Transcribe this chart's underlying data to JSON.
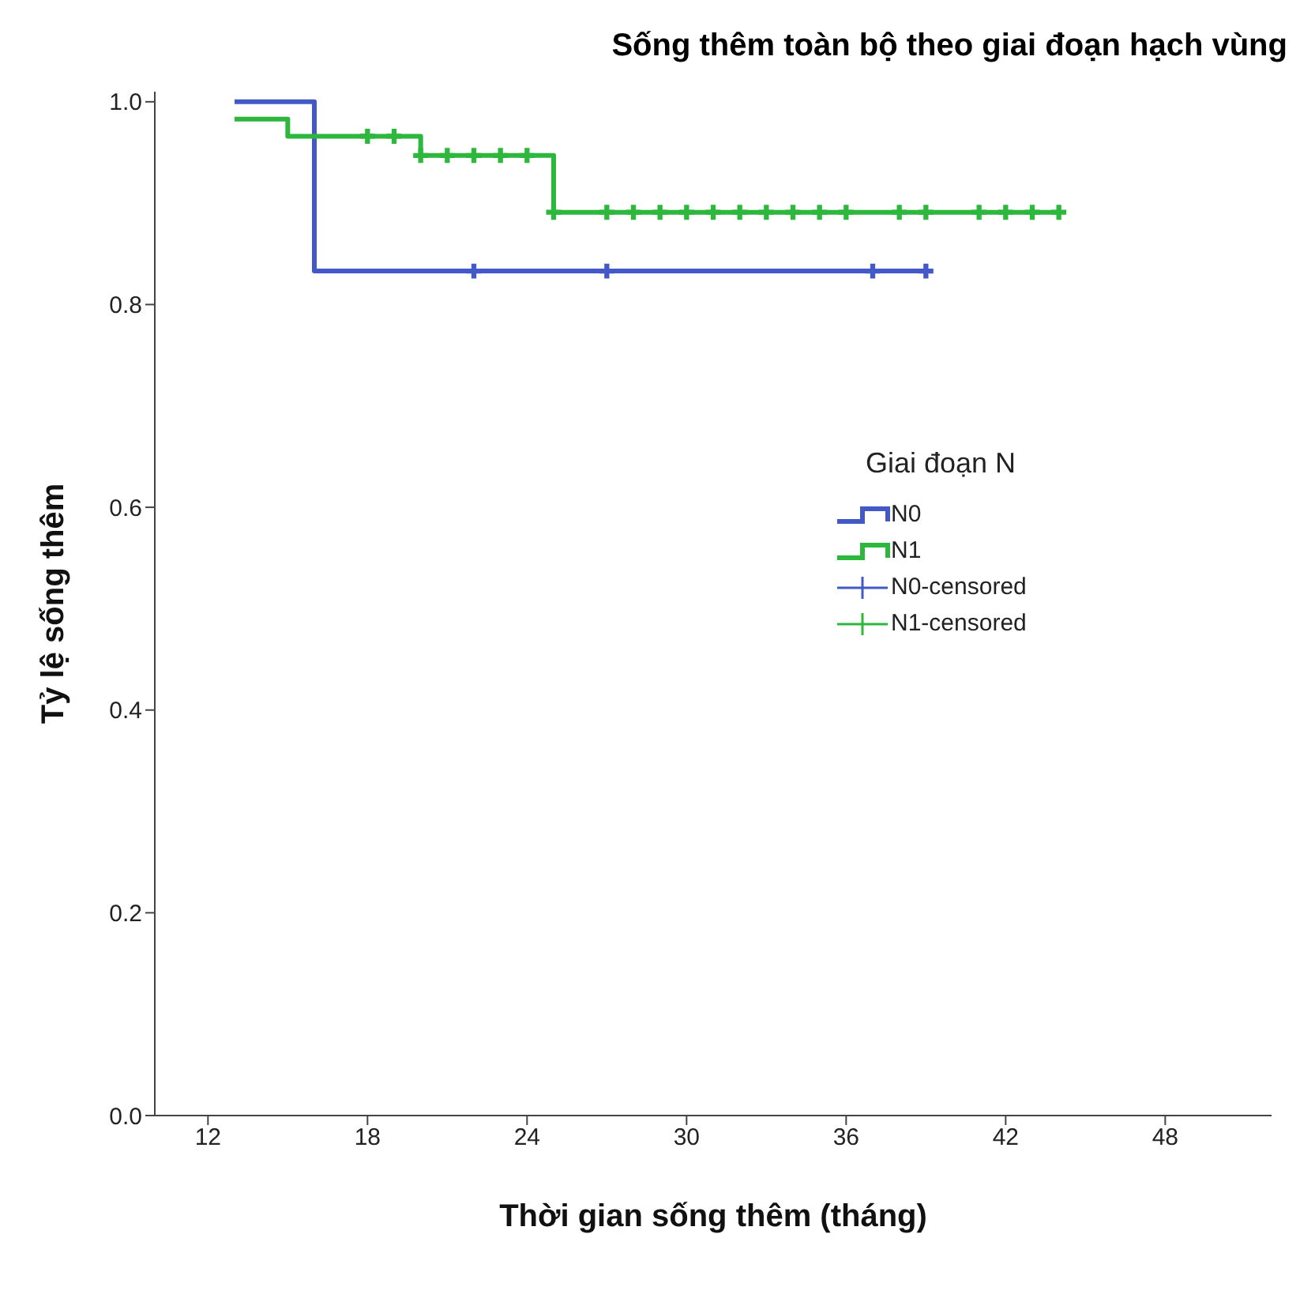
{
  "chart_data": {
    "type": "step",
    "title": "Sống thêm toàn bộ theo giai đoạn hạch vùng",
    "xlabel": "Thời gian sống thêm (tháng)",
    "ylabel": "Tỷ lệ sống thêm",
    "legend_title": "Giai đoạn N",
    "legend": "right",
    "grid": false,
    "xlim": [
      10,
      52
    ],
    "xticks": [
      12,
      18,
      24,
      30,
      36,
      42,
      48
    ],
    "ylim": [
      0,
      1.01
    ],
    "yticks": [
      {
        "value": 0,
        "label": "0.0"
      },
      {
        "value": 0.2,
        "label": "0.2"
      },
      {
        "value": 0.4,
        "label": "0.4"
      },
      {
        "value": 0.6,
        "label": "0.6"
      },
      {
        "value": 0.8,
        "label": "0.8"
      },
      {
        "value": 1,
        "label": "1.0"
      }
    ],
    "series": [
      {
        "name": "N0",
        "color": "#4459c8",
        "x": [
          13,
          16,
          39
        ],
        "values": [
          1,
          0.833,
          0.833
        ]
      },
      {
        "name": "N1",
        "color": "#2db83d",
        "x": [
          13,
          15,
          20,
          25,
          44
        ],
        "values": [
          0.983,
          0.966,
          0.947,
          0.891,
          0.891
        ]
      },
      {
        "name": "N0-censored",
        "type": "scatter",
        "marker": "cross",
        "color": "#4459c8",
        "x": [
          22,
          27,
          37,
          39
        ],
        "values": [
          0.833,
          0.833,
          0.833,
          0.833
        ]
      },
      {
        "name": "N1-censored",
        "type": "scatter",
        "marker": "cross",
        "color": "#2db83d",
        "x": [
          18,
          19,
          20,
          21,
          22,
          23,
          24,
          25,
          27,
          28,
          29,
          30,
          31,
          32,
          33,
          34,
          35,
          36,
          38,
          39,
          41,
          42,
          43,
          44
        ],
        "values": [
          0.966,
          0.966,
          0.947,
          0.947,
          0.947,
          0.947,
          0.947,
          0.891,
          0.891,
          0.891,
          0.891,
          0.891,
          0.891,
          0.891,
          0.891,
          0.891,
          0.891,
          0.891,
          0.891,
          0.891,
          0.891,
          0.891,
          0.891,
          0.891
        ]
      }
    ]
  }
}
